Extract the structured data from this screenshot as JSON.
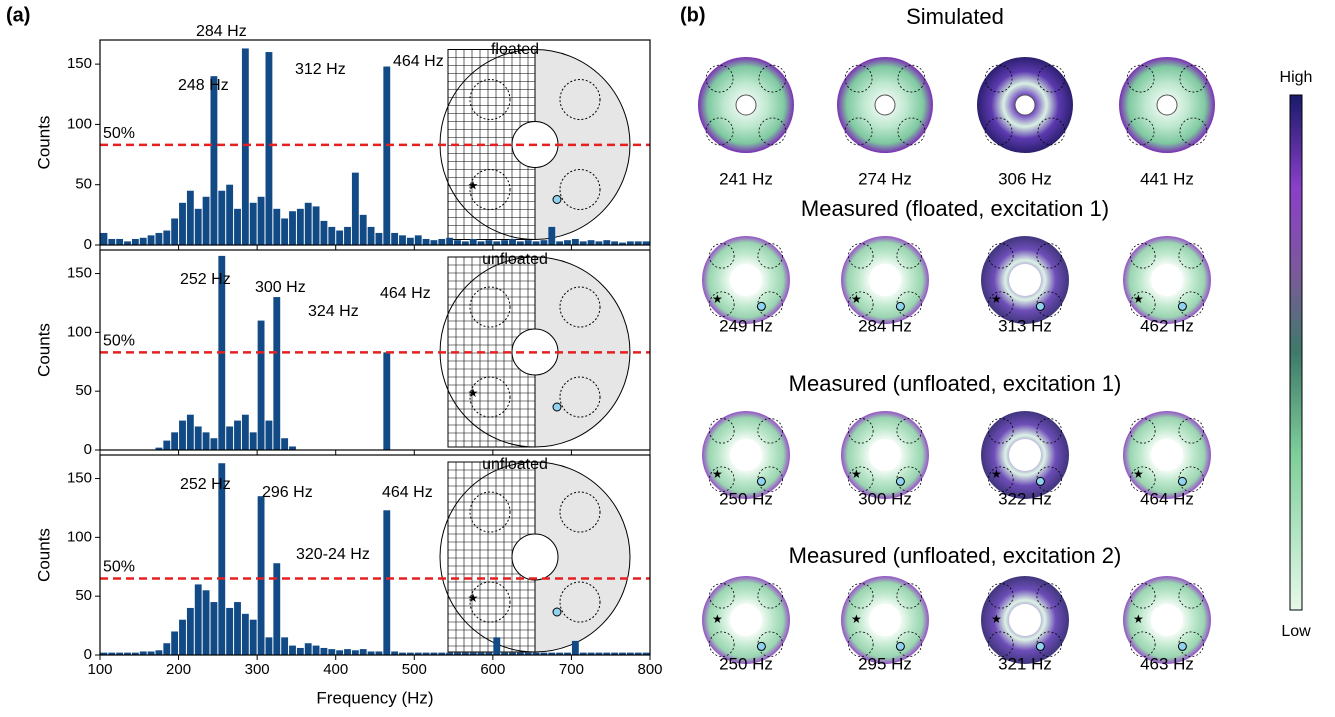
{
  "panel_labels": [
    "(a)",
    "(b)"
  ],
  "chart_data": [
    {
      "type": "histogram",
      "ylabel": "Counts",
      "inset_label": "floated",
      "color": "#114a85",
      "bins": [
        100,
        110,
        120,
        130,
        140,
        150,
        160,
        170,
        180,
        190,
        200,
        210,
        220,
        230,
        240,
        250,
        260,
        270,
        280,
        290,
        300,
        310,
        320,
        330,
        340,
        350,
        360,
        370,
        380,
        390,
        400,
        410,
        420,
        430,
        440,
        450,
        460,
        470,
        480,
        490,
        500,
        510,
        520,
        530,
        540,
        550,
        560,
        570,
        580,
        590,
        600,
        610,
        620,
        630,
        640,
        650,
        660,
        670,
        680,
        690,
        700,
        710,
        720,
        730,
        740,
        750,
        760,
        770,
        780,
        790,
        800
      ],
      "values": [
        10,
        5,
        5,
        3,
        5,
        6,
        8,
        10,
        12,
        22,
        35,
        45,
        30,
        40,
        140,
        45,
        50,
        30,
        163,
        35,
        40,
        160,
        30,
        22,
        28,
        30,
        35,
        32,
        20,
        15,
        12,
        15,
        60,
        25,
        15,
        10,
        148,
        10,
        8,
        6,
        8,
        5,
        4,
        5,
        6,
        4,
        3,
        5,
        3,
        4,
        3,
        4,
        5,
        3,
        4,
        3,
        4,
        15,
        3,
        4,
        5,
        3,
        4,
        3,
        4,
        3,
        2,
        3,
        3,
        3
      ],
      "annotations": [
        "248 Hz",
        "284 Hz",
        "312 Hz",
        "464 Hz"
      ],
      "threshold": {
        "value": 83,
        "label": "50%"
      },
      "xlim": [
        100,
        800
      ],
      "xticks": [
        100,
        200,
        300,
        400,
        500,
        600,
        700,
        800
      ],
      "ylim": [
        0,
        170
      ],
      "yticks": [
        0,
        50,
        100,
        150
      ]
    },
    {
      "type": "histogram",
      "ylabel": "Counts",
      "inset_label": "unfloated",
      "color": "#114a85",
      "bins": [
        100,
        110,
        120,
        130,
        140,
        150,
        160,
        170,
        180,
        190,
        200,
        210,
        220,
        230,
        240,
        250,
        260,
        270,
        280,
        290,
        300,
        310,
        320,
        330,
        340,
        350,
        360,
        370,
        380,
        390,
        400,
        410,
        420,
        430,
        440,
        450,
        460,
        470,
        480,
        490,
        500,
        510,
        520,
        530,
        540,
        550,
        560,
        570,
        580,
        590,
        600,
        610,
        620,
        630,
        640,
        650,
        660,
        670,
        680,
        690,
        700,
        710,
        720,
        730,
        740,
        750,
        760,
        770,
        780,
        790,
        800
      ],
      "values": [
        0,
        0,
        0,
        0,
        0,
        0,
        0,
        2,
        8,
        15,
        25,
        30,
        20,
        15,
        10,
        165,
        20,
        25,
        30,
        15,
        110,
        25,
        130,
        10,
        3,
        0,
        0,
        0,
        0,
        0,
        0,
        0,
        0,
        0,
        0,
        0,
        83,
        0,
        0,
        0,
        0,
        0,
        0,
        0,
        0,
        0,
        0,
        0,
        0,
        0,
        0,
        0,
        0,
        0,
        0,
        0,
        0,
        0,
        0,
        0,
        0,
        0,
        0,
        0,
        0,
        0,
        0,
        0,
        0,
        0
      ],
      "annotations": [
        "252 Hz",
        "300 Hz",
        "324 Hz",
        "464 Hz"
      ],
      "threshold": {
        "value": 83,
        "label": "50%"
      },
      "xlim": [
        100,
        800
      ],
      "xticks": [
        100,
        200,
        300,
        400,
        500,
        600,
        700,
        800
      ],
      "ylim": [
        0,
        170
      ],
      "yticks": [
        0,
        50,
        100,
        150
      ]
    },
    {
      "type": "histogram",
      "ylabel": "Counts",
      "xlabel": "Frequency (Hz)",
      "inset_label": "unfloated",
      "color": "#114a85",
      "bins": [
        100,
        110,
        120,
        130,
        140,
        150,
        160,
        170,
        180,
        190,
        200,
        210,
        220,
        230,
        240,
        250,
        260,
        270,
        280,
        290,
        300,
        310,
        320,
        330,
        340,
        350,
        360,
        370,
        380,
        390,
        400,
        410,
        420,
        430,
        440,
        450,
        460,
        470,
        480,
        490,
        500,
        510,
        520,
        530,
        540,
        550,
        560,
        570,
        580,
        590,
        600,
        610,
        620,
        630,
        640,
        650,
        660,
        670,
        680,
        690,
        700,
        710,
        720,
        730,
        740,
        750,
        760,
        770,
        780,
        790,
        800
      ],
      "values": [
        2,
        2,
        2,
        2,
        2,
        3,
        3,
        4,
        10,
        20,
        30,
        40,
        60,
        55,
        45,
        163,
        40,
        45,
        35,
        30,
        135,
        15,
        78,
        15,
        8,
        6,
        10,
        8,
        6,
        5,
        4,
        5,
        4,
        5,
        3,
        3,
        123,
        3,
        2,
        2,
        2,
        2,
        2,
        2,
        2,
        2,
        2,
        2,
        2,
        2,
        15,
        2,
        2,
        2,
        2,
        2,
        2,
        2,
        2,
        2,
        12,
        2,
        2,
        2,
        2,
        2,
        2,
        2,
        2,
        2
      ],
      "annotations": [
        "252 Hz",
        "296 Hz",
        "320-24 Hz",
        "464 Hz"
      ],
      "threshold": {
        "value": 65,
        "label": "50%"
      },
      "xlim": [
        100,
        800
      ],
      "xticks": [
        100,
        200,
        300,
        400,
        500,
        600,
        700,
        800
      ],
      "ylim": [
        0,
        170
      ],
      "yticks": [
        0,
        50,
        100,
        150
      ]
    }
  ],
  "panel_b": {
    "rows": [
      {
        "title": "Simulated",
        "labels": [
          "241 Hz",
          "274 Hz",
          "306 Hz",
          "441 Hz"
        ]
      },
      {
        "title": "Measured (floated, excitation 1)",
        "labels": [
          "249 Hz",
          "284 Hz",
          "313 Hz",
          "462 Hz"
        ]
      },
      {
        "title": "Measured (unfloated, excitation 1)",
        "labels": [
          "250 Hz",
          "300 Hz",
          "322 Hz",
          "464 Hz"
        ]
      },
      {
        "title": "Measured (unfloated, excitation 2)",
        "labels": [
          "250 Hz",
          "295 Hz",
          "321 Hz",
          "463 Hz"
        ]
      }
    ],
    "colorbar": {
      "high": "High",
      "low": "Low"
    }
  }
}
